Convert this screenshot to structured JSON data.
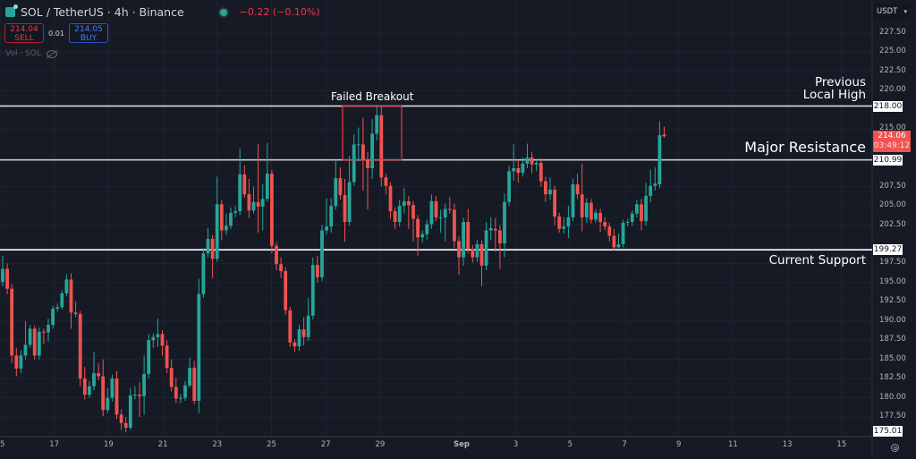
{
  "header": {
    "symbol_title": "SOL / TetherUS · 4h · Binance",
    "change": "−0.22 (−0.10%)",
    "sell_price": "214.04",
    "sell_label": "SELL",
    "spread": "0.01",
    "buy_price": "214.05",
    "buy_label": "BUY",
    "volume_label": "Vol · SOL",
    "currency": "USDT"
  },
  "colors": {
    "up": "#26a69a",
    "down": "#ef5350",
    "background": "#161a25",
    "annotation_box": "#f23645"
  },
  "annotations": {
    "failed_breakout": "Failed Breakout",
    "previous_high_1": "Previous",
    "previous_high_2": "Local High",
    "major_resistance": "Major Resistance",
    "current_support": "Current Support"
  },
  "price_labels": {
    "previous_high": "218.00",
    "resistance": "210.99",
    "support": "199.27",
    "last_price": "214.06",
    "countdown": "03:49:12",
    "low_marker": "175.01"
  },
  "chart_data": {
    "type": "candlestick",
    "title": "SOL / TetherUS · 4h · Binance",
    "ylim": [
      175.01,
      229
    ],
    "y_ticks": [
      "227.50",
      "225.00",
      "222.50",
      "220.00",
      "215.00",
      "207.50",
      "205.00",
      "202.50",
      "197.50",
      "195.00",
      "192.50",
      "190.00",
      "187.50",
      "185.00",
      "182.50",
      "180.00",
      "177.50"
    ],
    "x_ticks": [
      "15",
      "17",
      "19",
      "21",
      "23",
      "25",
      "27",
      "29",
      "Sep",
      "3",
      "5",
      "7",
      "9",
      "11",
      "13",
      "15"
    ],
    "horizontal_lines": [
      218.0,
      210.99,
      199.27
    ],
    "grid": true,
    "candles_ohlc": [
      [
        195.1,
        198.5,
        194.5,
        196.8
      ],
      [
        196.8,
        197.5,
        193.5,
        194.2
      ],
      [
        194.2,
        194.8,
        184.5,
        185.5
      ],
      [
        185.5,
        186.5,
        182.8,
        183.8
      ],
      [
        183.8,
        186.2,
        183.2,
        185.5
      ],
      [
        185.5,
        190.0,
        185.0,
        186.9
      ],
      [
        186.9,
        189.5,
        186.5,
        189.0
      ],
      [
        189.0,
        189.4,
        185.0,
        185.5
      ],
      [
        185.5,
        189.2,
        185.0,
        188.6
      ],
      [
        188.6,
        189.0,
        187.0,
        188.5
      ],
      [
        188.5,
        190.3,
        187.3,
        189.5
      ],
      [
        189.5,
        192.0,
        189.0,
        191.6
      ],
      [
        191.6,
        192.3,
        191.2,
        191.8
      ],
      [
        191.8,
        194.0,
        191.5,
        193.6
      ],
      [
        193.6,
        196.1,
        193.2,
        195.4
      ],
      [
        195.4,
        196.2,
        189.0,
        191.1
      ],
      [
        191.1,
        192.5,
        190.5,
        190.9
      ],
      [
        190.9,
        191.3,
        181.5,
        182.5
      ],
      [
        182.5,
        184.0,
        179.8,
        180.4
      ],
      [
        180.4,
        182.2,
        180.0,
        181.5
      ],
      [
        181.5,
        186.0,
        181.0,
        183.2
      ],
      [
        183.2,
        184.5,
        182.3,
        182.8
      ],
      [
        182.8,
        185.0,
        177.6,
        178.4
      ],
      [
        178.4,
        181.3,
        178.0,
        180.0
      ],
      [
        180.0,
        183.0,
        179.5,
        182.5
      ],
      [
        182.5,
        183.5,
        177.2,
        177.8
      ],
      [
        177.8,
        178.5,
        175.8,
        176.7
      ],
      [
        176.7,
        177.5,
        175.5,
        176.1
      ],
      [
        176.1,
        181.3,
        175.8,
        180.3
      ],
      [
        180.3,
        181.5,
        179.8,
        180.4
      ],
      [
        180.4,
        182.0,
        177.5,
        180.2
      ],
      [
        180.2,
        185.5,
        177.8,
        183.1
      ],
      [
        183.1,
        188.3,
        182.5,
        187.5
      ],
      [
        187.5,
        188.4,
        186.5,
        187.9
      ],
      [
        187.9,
        190.3,
        186.6,
        188.3
      ],
      [
        188.3,
        188.8,
        185.5,
        186.8
      ],
      [
        186.8,
        187.5,
        183.2,
        183.9
      ],
      [
        183.9,
        185.0,
        180.8,
        181.4
      ],
      [
        181.4,
        182.6,
        179.3,
        179.9
      ],
      [
        179.9,
        180.5,
        179.3,
        180.0
      ],
      [
        180.0,
        182.2,
        179.6,
        181.6
      ],
      [
        181.6,
        185.2,
        181.3,
        183.9
      ],
      [
        183.9,
        184.8,
        179.2,
        179.6
      ],
      [
        179.6,
        195.5,
        178.0,
        193.5
      ],
      [
        193.5,
        199.5,
        193.0,
        198.8
      ],
      [
        198.8,
        202.1,
        198.3,
        200.7
      ],
      [
        200.7,
        201.2,
        195.6,
        198.1
      ],
      [
        198.1,
        208.8,
        197.7,
        205.2
      ],
      [
        205.2,
        205.8,
        200.5,
        201.8
      ],
      [
        201.8,
        204.0,
        201.2,
        202.4
      ],
      [
        202.4,
        204.8,
        202.0,
        204.1
      ],
      [
        204.1,
        205.0,
        203.5,
        204.3
      ],
      [
        204.3,
        212.5,
        203.8,
        209.1
      ],
      [
        209.1,
        210.3,
        206.0,
        206.5
      ],
      [
        206.5,
        208.5,
        203.4,
        204.4
      ],
      [
        204.4,
        207.5,
        204.0,
        205.5
      ],
      [
        205.5,
        213.0,
        201.5,
        204.9
      ],
      [
        204.9,
        207.8,
        201.8,
        205.9
      ],
      [
        205.9,
        213.2,
        205.5,
        209.2
      ],
      [
        209.2,
        209.7,
        198.8,
        199.8
      ],
      [
        199.8,
        200.3,
        196.6,
        197.4
      ],
      [
        197.4,
        198.3,
        195.6,
        196.5
      ],
      [
        196.5,
        197.0,
        190.8,
        191.4
      ],
      [
        191.4,
        191.9,
        186.6,
        187.2
      ],
      [
        187.2,
        187.6,
        186.0,
        186.7
      ],
      [
        186.7,
        189.5,
        186.1,
        188.9
      ],
      [
        188.9,
        190.5,
        186.8,
        187.9
      ],
      [
        187.9,
        193.0,
        187.4,
        190.7
      ],
      [
        190.7,
        198.3,
        190.2,
        197.3
      ],
      [
        197.3,
        198.5,
        195.0,
        195.7
      ],
      [
        195.7,
        202.5,
        195.2,
        201.8
      ],
      [
        201.8,
        206.0,
        201.3,
        202.3
      ],
      [
        202.3,
        206.0,
        201.5,
        205.0
      ],
      [
        205.0,
        211.0,
        204.5,
        208.6
      ],
      [
        208.6,
        210.0,
        205.8,
        206.4
      ],
      [
        206.4,
        208.5,
        200.3,
        202.9
      ],
      [
        202.9,
        211.5,
        202.4,
        208.1
      ],
      [
        208.1,
        214.3,
        207.6,
        213.0
      ],
      [
        213.0,
        215.2,
        210.8,
        213.0
      ],
      [
        213.0,
        216.5,
        207.0,
        210.9
      ],
      [
        210.9,
        212.0,
        204.5,
        209.9
      ],
      [
        209.9,
        216.3,
        208.5,
        214.4
      ],
      [
        214.4,
        218.0,
        213.5,
        216.8
      ],
      [
        216.8,
        218.0,
        207.5,
        208.7
      ],
      [
        208.7,
        209.2,
        206.5,
        207.6
      ],
      [
        207.6,
        208.1,
        203.3,
        204.3
      ],
      [
        204.3,
        204.8,
        202.0,
        202.9
      ],
      [
        202.9,
        205.8,
        202.3,
        205.0
      ],
      [
        205.0,
        207.3,
        204.0,
        205.6
      ],
      [
        205.6,
        206.3,
        202.0,
        205.1
      ],
      [
        205.1,
        205.6,
        200.3,
        203.3
      ],
      [
        203.3,
        203.8,
        198.5,
        200.9
      ],
      [
        200.9,
        201.8,
        200.2,
        201.3
      ],
      [
        201.3,
        203.2,
        200.6,
        202.6
      ],
      [
        202.6,
        206.5,
        202.0,
        205.6
      ],
      [
        205.6,
        206.3,
        203.0,
        203.5
      ],
      [
        203.5,
        204.5,
        201.5,
        203.5
      ],
      [
        203.5,
        205.3,
        200.4,
        204.6
      ],
      [
        204.6,
        206.1,
        204.0,
        204.5
      ],
      [
        204.5,
        205.3,
        199.5,
        200.4
      ],
      [
        200.4,
        201.0,
        196.0,
        198.3
      ],
      [
        198.3,
        203.5,
        197.2,
        202.9
      ],
      [
        202.9,
        204.6,
        198.8,
        199.4
      ],
      [
        199.4,
        199.9,
        197.6,
        198.3
      ],
      [
        198.3,
        200.6,
        197.7,
        200.0
      ],
      [
        200.0,
        200.5,
        194.5,
        197.2
      ],
      [
        197.2,
        202.9,
        196.6,
        201.8
      ],
      [
        201.8,
        203.5,
        200.5,
        202.1
      ],
      [
        202.0,
        203.4,
        199.0,
        201.8
      ],
      [
        201.8,
        202.5,
        196.8,
        200.1
      ],
      [
        200.1,
        206.6,
        198.3,
        205.5
      ],
      [
        205.5,
        210.2,
        205.0,
        209.5
      ],
      [
        209.5,
        213.0,
        208.3,
        209.9
      ],
      [
        209.9,
        211.0,
        208.0,
        209.3
      ],
      [
        209.3,
        211.3,
        208.8,
        210.5
      ],
      [
        210.5,
        213.1,
        209.9,
        211.3
      ],
      [
        211.3,
        212.0,
        209.2,
        210.4
      ],
      [
        210.4,
        211.0,
        209.5,
        210.6
      ],
      [
        210.6,
        211.2,
        207.5,
        208.2
      ],
      [
        208.2,
        208.8,
        205.5,
        206.5
      ],
      [
        206.5,
        208.7,
        205.8,
        207.1
      ],
      [
        207.1,
        207.6,
        202.5,
        203.6
      ],
      [
        203.6,
        204.1,
        201.5,
        202.0
      ],
      [
        202.0,
        203.5,
        201.4,
        202.3
      ],
      [
        202.3,
        205.0,
        200.8,
        203.5
      ],
      [
        203.5,
        208.5,
        203.0,
        207.8
      ],
      [
        207.8,
        209.2,
        205.9,
        206.5
      ],
      [
        206.5,
        210.5,
        201.7,
        203.5
      ],
      [
        203.5,
        206.0,
        202.8,
        205.4
      ],
      [
        205.4,
        205.9,
        202.7,
        203.2
      ],
      [
        203.2,
        204.6,
        202.8,
        204.1
      ],
      [
        204.1,
        204.6,
        201.6,
        202.9
      ],
      [
        202.9,
        203.5,
        201.8,
        202.3
      ],
      [
        202.3,
        202.8,
        200.3,
        201.1
      ],
      [
        201.1,
        202.0,
        199.2,
        199.6
      ],
      [
        199.6,
        201.4,
        199.3,
        200.0
      ],
      [
        200.0,
        203.2,
        199.6,
        202.8
      ],
      [
        202.8,
        203.3,
        202.3,
        202.9
      ],
      [
        202.9,
        204.4,
        202.4,
        204.0
      ],
      [
        204.0,
        205.8,
        203.5,
        205.2
      ],
      [
        205.2,
        205.9,
        201.8,
        203.0
      ],
      [
        203.0,
        208.0,
        202.4,
        206.3
      ],
      [
        206.3,
        209.7,
        205.5,
        207.6
      ],
      [
        207.6,
        210.0,
        207.0,
        207.9
      ],
      [
        207.8,
        216.0,
        207.3,
        214.2
      ],
      [
        214.3,
        215.3,
        213.9,
        214.06
      ]
    ],
    "failed_breakout_box": {
      "price_top": 218.0,
      "price_bottom": 210.99
    }
  }
}
